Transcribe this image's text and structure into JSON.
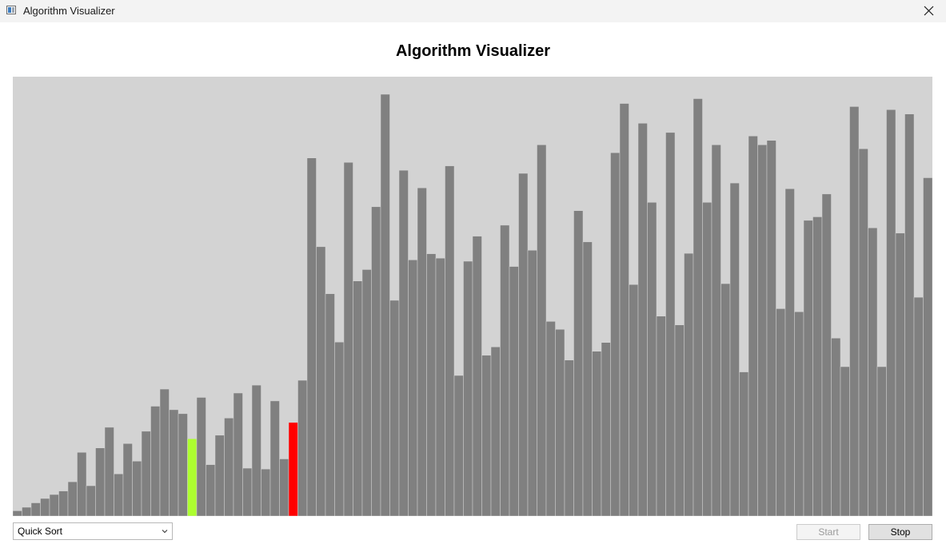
{
  "window": {
    "title": "Algorithm Visualizer"
  },
  "header": {
    "title": "Algorithm Visualizer"
  },
  "controls": {
    "algorithm_selected": "Quick Sort",
    "start_label": "Start",
    "start_enabled": false,
    "stop_label": "Stop",
    "stop_enabled": true
  },
  "colors": {
    "background": "#d3d3d3",
    "bar": "#808080",
    "bar_highlight_primary": "#adff2f",
    "bar_highlight_secondary": "#ff0000"
  },
  "chart_data": {
    "type": "bar",
    "description": "Array values being sorted, heights as fraction of max",
    "values": [
      0.012,
      0.02,
      0.03,
      0.04,
      0.049,
      0.057,
      0.078,
      0.145,
      0.069,
      0.155,
      0.202,
      0.096,
      0.165,
      0.125,
      0.193,
      0.25,
      0.289,
      0.242,
      0.233,
      0.176,
      0.27,
      0.117,
      0.184,
      0.223,
      0.28,
      0.109,
      0.298,
      0.107,
      0.262,
      0.13,
      0.213,
      0.309,
      0.815,
      0.613,
      0.506,
      0.396,
      0.805,
      0.535,
      0.561,
      0.704,
      0.96,
      0.491,
      0.787,
      0.583,
      0.747,
      0.597,
      0.587,
      0.797,
      0.32,
      0.58,
      0.637,
      0.366,
      0.385,
      0.662,
      0.568,
      0.78,
      0.605,
      0.845,
      0.443,
      0.425,
      0.355,
      0.695,
      0.624,
      0.375,
      0.395,
      0.827,
      0.939,
      0.527,
      0.894,
      0.714,
      0.455,
      0.873,
      0.435,
      0.598,
      0.95,
      0.714,
      0.845,
      0.529,
      0.758,
      0.328,
      0.865,
      0.845,
      0.855,
      0.472,
      0.745,
      0.465,
      0.673,
      0.681,
      0.733,
      0.405,
      0.34,
      0.932,
      0.836,
      0.656,
      0.34,
      0.925,
      0.644,
      0.915,
      0.498,
      0.77
    ],
    "highlights": [
      {
        "index": 19,
        "color": "#adff2f"
      },
      {
        "index": 30,
        "color": "#ff0000"
      }
    ]
  }
}
